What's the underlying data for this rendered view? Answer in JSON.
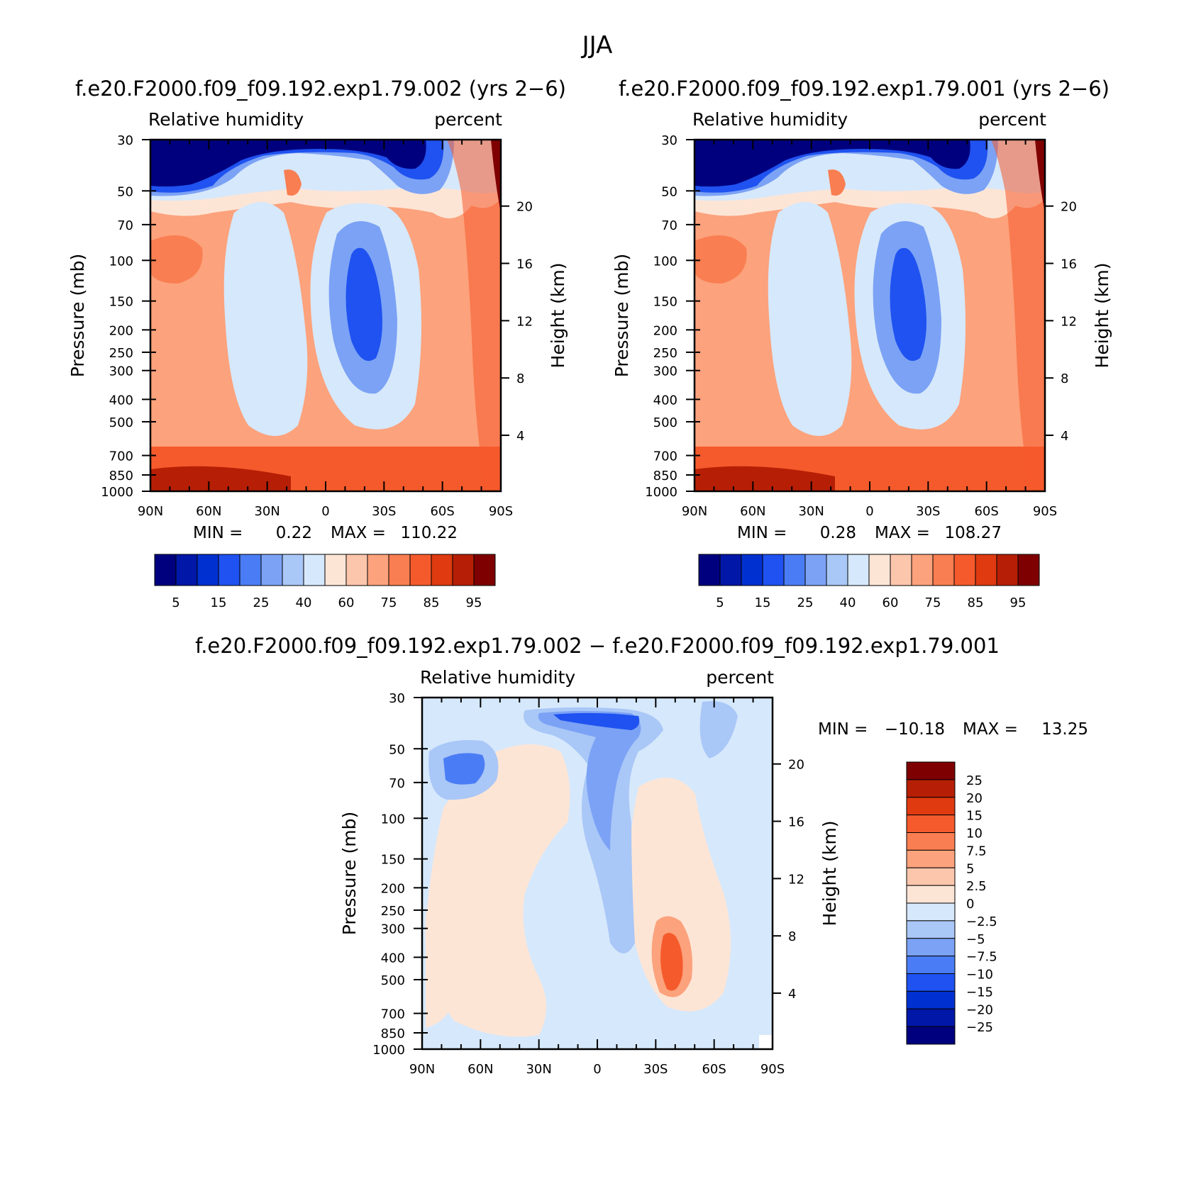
{
  "figure": {
    "title": "JJA",
    "panel_a_title": "f.e20.F2000.f09_f09.192.exp1.79.002 (yrs 2−6)",
    "panel_b_title": "f.e20.F2000.f09_f09.192.exp1.79.001 (yrs 2−6)",
    "panel_c_title": "f.e20.F2000.f09_f09.192.exp1.79.002 − f.e20.F2000.f09_f09.192.exp1.79.001"
  },
  "chart_data": [
    {
      "type": "heatmap",
      "variable": "Relative humidity",
      "units": "percent",
      "xlabel": "",
      "ylabel": "Pressure (mb)",
      "y2label": "Height (km)",
      "x_tick_labels": [
        "90N",
        "60N",
        "30N",
        "0",
        "30S",
        "60S",
        "90S"
      ],
      "y_ticks": [
        30,
        50,
        70,
        100,
        150,
        200,
        250,
        300,
        400,
        500,
        700,
        850,
        1000
      ],
      "y2_ticks": [
        20,
        16,
        12,
        8,
        4
      ],
      "ylim": [
        1000,
        30
      ],
      "min_label": "MIN =",
      "min_value": "0.22",
      "max_label": "MAX =",
      "max_value": "110.22",
      "colorbar_labels": [
        "5",
        "15",
        "25",
        "40",
        "60",
        "75",
        "85",
        "95"
      ],
      "colors": [
        "#00007f",
        "#0017a8",
        "#0031d0",
        "#1f52f0",
        "#4a7df5",
        "#7ba2f5",
        "#a9c7f7",
        "#d6e8fb",
        "#fde5d6",
        "#fcc6ac",
        "#fca27c",
        "#f97e51",
        "#f55a2c",
        "#df3a10",
        "#b61f05",
        "#7f0000"
      ]
    },
    {
      "type": "heatmap",
      "variable": "Relative humidity",
      "units": "percent",
      "xlabel": "",
      "ylabel": "Pressure (mb)",
      "y2label": "Height (km)",
      "x_tick_labels": [
        "90N",
        "60N",
        "30N",
        "0",
        "30S",
        "60S",
        "90S"
      ],
      "y_ticks": [
        30,
        50,
        70,
        100,
        150,
        200,
        250,
        300,
        400,
        500,
        700,
        850,
        1000
      ],
      "y2_ticks": [
        20,
        16,
        12,
        8,
        4
      ],
      "ylim": [
        1000,
        30
      ],
      "min_label": "MIN =",
      "min_value": "0.28",
      "max_label": "MAX =",
      "max_value": "108.27",
      "colorbar_labels": [
        "5",
        "15",
        "25",
        "40",
        "60",
        "75",
        "85",
        "95"
      ],
      "colors": [
        "#00007f",
        "#0017a8",
        "#0031d0",
        "#1f52f0",
        "#4a7df5",
        "#7ba2f5",
        "#a9c7f7",
        "#d6e8fb",
        "#fde5d6",
        "#fcc6ac",
        "#fca27c",
        "#f97e51",
        "#f55a2c",
        "#df3a10",
        "#b61f05",
        "#7f0000"
      ]
    },
    {
      "type": "heatmap",
      "variable": "Relative humidity",
      "units": "percent",
      "xlabel": "",
      "ylabel": "Pressure (mb)",
      "y2label": "Height (km)",
      "x_tick_labels": [
        "90N",
        "60N",
        "30N",
        "0",
        "30S",
        "60S",
        "90S"
      ],
      "y_ticks": [
        30,
        50,
        70,
        100,
        150,
        200,
        250,
        300,
        400,
        500,
        700,
        850,
        1000
      ],
      "y2_ticks": [
        20,
        16,
        12,
        8,
        4
      ],
      "ylim": [
        1000,
        30
      ],
      "min_label": "MIN =",
      "min_value": "−10.18",
      "max_label": "MAX =",
      "max_value": "13.25",
      "colorbar_labels": [
        "25",
        "20",
        "15",
        "10",
        "7.5",
        "5",
        "2.5",
        "0",
        "−2.5",
        "−5",
        "−7.5",
        "−10",
        "−15",
        "−20",
        "−25"
      ],
      "colors": [
        "#7f0000",
        "#b61f05",
        "#df3a10",
        "#f55a2c",
        "#f97e51",
        "#fca27c",
        "#fcc6ac",
        "#fde5d6",
        "#d6e8fb",
        "#a9c7f7",
        "#7ba2f5",
        "#4a7df5",
        "#1f52f0",
        "#0031d0",
        "#0017a8",
        "#00007f"
      ]
    }
  ]
}
